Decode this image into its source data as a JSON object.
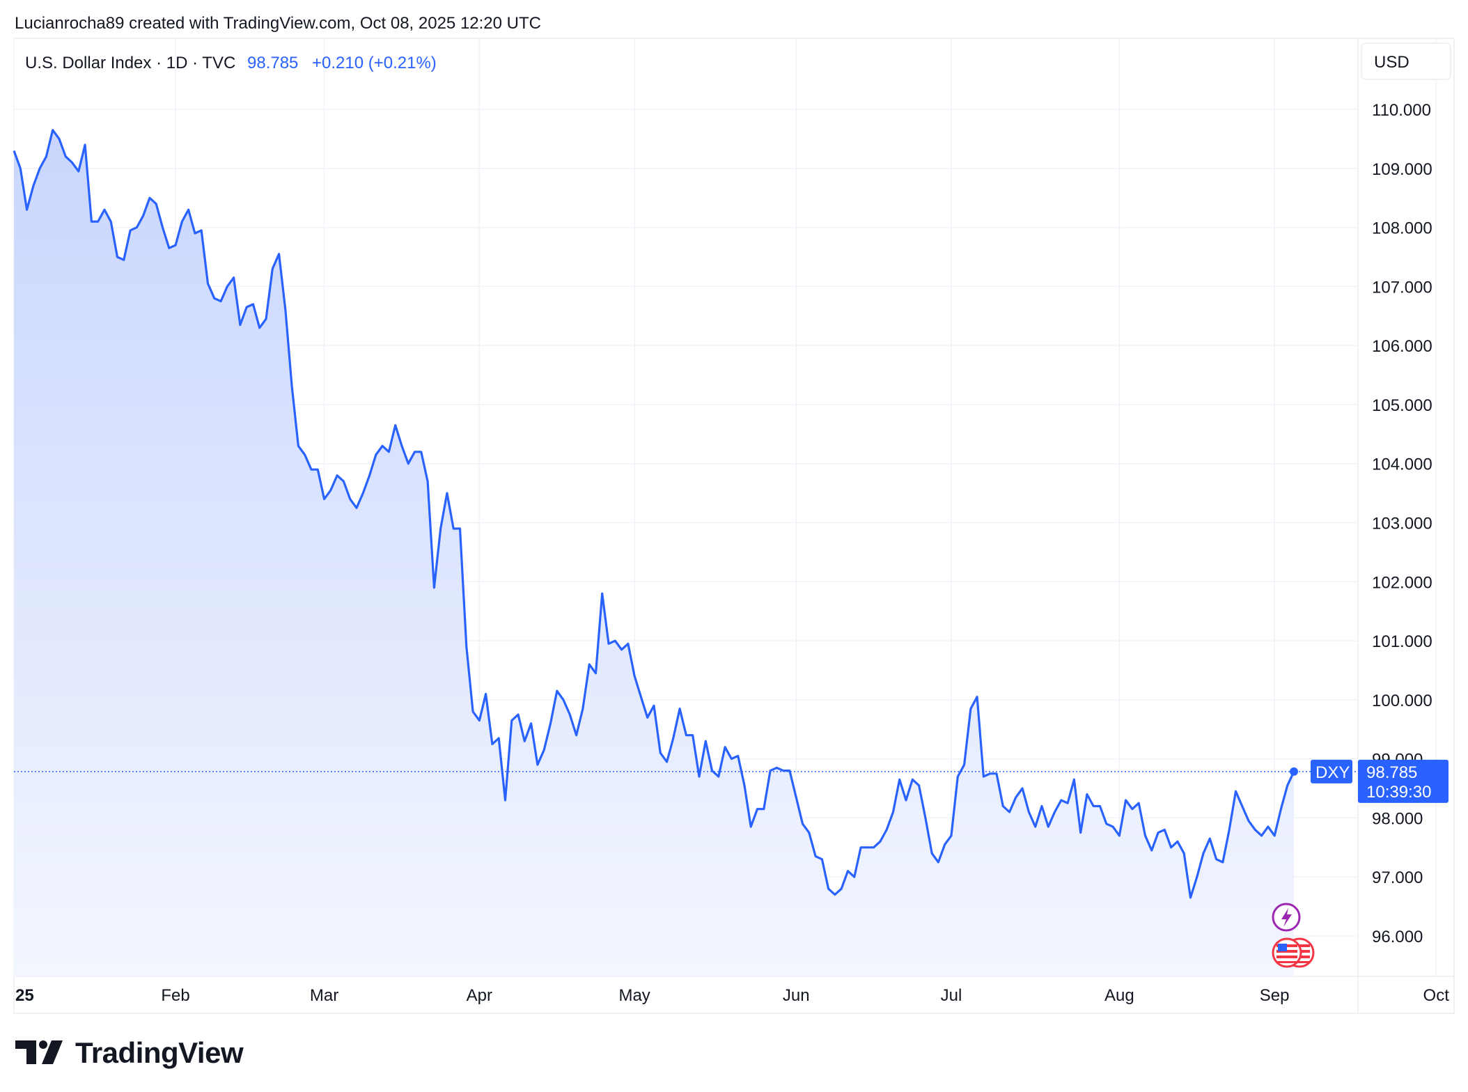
{
  "header": {
    "attribution": "Lucianrocha89 created with TradingView.com, Oct 08, 2025 12:20 UTC"
  },
  "legend": {
    "instrument": "U.S. Dollar Index · 1D · TVC",
    "price": "98.785",
    "change": "+0.210 (+0.21%)"
  },
  "currency_button": "USD",
  "price_tag": {
    "symbol": "DXY",
    "price": "98.785",
    "countdown": "10:39:30"
  },
  "brand": "TradingView",
  "colors": {
    "line": "#2962ff",
    "fill_top": "#c9d6fd",
    "fill_bottom": "#f3f6ff",
    "grid": "#f0f3fa",
    "axis_text": "#131722",
    "tag_bg": "#2962ff",
    "event_icon": "#9c27b0",
    "flag_red": "#f23645"
  },
  "icons": [
    "lightning-event-icon",
    "us-flag-icon",
    "tradingview-logo-icon"
  ],
  "chart_data": {
    "type": "area",
    "title": "",
    "xlabel": "",
    "ylabel": "",
    "ylim": [
      95.2,
      111.0
    ],
    "y_ticks": [
      "96.000",
      "97.000",
      "98.000",
      "99.000",
      "100.000",
      "101.000",
      "102.000",
      "103.000",
      "104.000",
      "105.000",
      "106.000",
      "107.000",
      "108.000",
      "109.000",
      "110.000"
    ],
    "y_tick_values": [
      96,
      97,
      98,
      99,
      100,
      101,
      102,
      103,
      104,
      105,
      106,
      107,
      108,
      109,
      110
    ],
    "x_ticks": [
      "25",
      "Feb",
      "Mar",
      "Apr",
      "May",
      "Jun",
      "Jul",
      "Aug",
      "Sep",
      "Oct"
    ],
    "x_tick_index": [
      0,
      25,
      48,
      72,
      96,
      121,
      145,
      171,
      195,
      220
    ],
    "last_value": 98.785,
    "series": [
      {
        "values": [
          109.3,
          109.0,
          108.3,
          108.7,
          109.0,
          109.2,
          109.65,
          109.5,
          109.2,
          109.1,
          108.95,
          109.4,
          108.1,
          108.1,
          108.3,
          108.1,
          107.5,
          107.45,
          107.95,
          108.0,
          108.2,
          108.5,
          108.4,
          108.0,
          107.65,
          107.7,
          108.1,
          108.3,
          107.9,
          107.95,
          107.05,
          106.8,
          106.75,
          107.0,
          107.15,
          106.35,
          106.65,
          106.7,
          106.3,
          106.45,
          107.3,
          107.55,
          106.6,
          105.3,
          104.3,
          104.15,
          103.9,
          103.9,
          103.4,
          103.55,
          103.8,
          103.7,
          103.4,
          103.25,
          103.5,
          103.8,
          104.15,
          104.3,
          104.2,
          104.65,
          104.3,
          104.0,
          104.2,
          104.2,
          103.7,
          101.9,
          102.9,
          103.5,
          102.9,
          102.9,
          100.9,
          99.8,
          99.65,
          100.1,
          99.25,
          99.35,
          98.3,
          99.65,
          99.75,
          99.3,
          99.6,
          98.9,
          99.15,
          99.6,
          100.15,
          100.0,
          99.75,
          99.4,
          99.85,
          100.6,
          100.45,
          101.8,
          100.95,
          101.0,
          100.85,
          100.95,
          100.4,
          100.05,
          99.7,
          99.9,
          99.1,
          98.95,
          99.35,
          99.85,
          99.4,
          99.4,
          98.7,
          99.3,
          98.8,
          98.7,
          99.2,
          99.0,
          99.05,
          98.55,
          97.85,
          98.15,
          98.15,
          98.8,
          98.85,
          98.8,
          98.8,
          98.35,
          97.9,
          97.75,
          97.35,
          97.3,
          96.8,
          96.7,
          96.8,
          97.1,
          97.0,
          97.5,
          97.5,
          97.5,
          97.6,
          97.8,
          98.1,
          98.65,
          98.3,
          98.65,
          98.55,
          98.0,
          97.4,
          97.25,
          97.55,
          97.7,
          98.7,
          98.9,
          99.85,
          100.05,
          98.7,
          98.75,
          98.75,
          98.2,
          98.1,
          98.35,
          98.5,
          98.1,
          97.85,
          98.2,
          97.85,
          98.1,
          98.3,
          98.25,
          98.65,
          97.75,
          98.4,
          98.2,
          98.2,
          97.9,
          97.85,
          97.7,
          98.3,
          98.15,
          98.25,
          97.7,
          97.45,
          97.75,
          97.8,
          97.5,
          97.6,
          97.4,
          96.65,
          97.0,
          97.4,
          97.65,
          97.3,
          97.25,
          97.8,
          98.45,
          98.2,
          97.95,
          97.8,
          97.7,
          97.85,
          97.7,
          98.15,
          98.55,
          98.785
        ]
      }
    ],
    "grid": true,
    "legend_position": "top-left",
    "price_axis_side": "right"
  }
}
